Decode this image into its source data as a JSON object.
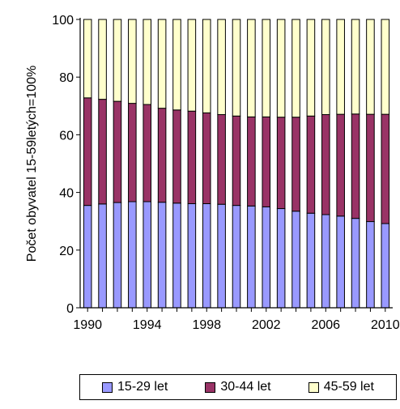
{
  "chart_data": {
    "type": "bar",
    "stacked": true,
    "xlabel": "",
    "ylabel": "Počet obyvatel 15-59letých=100%",
    "ylim": [
      0,
      100
    ],
    "yticks": [
      0,
      20,
      40,
      60,
      80,
      100
    ],
    "xtick_labels": [
      "1990",
      "1994",
      "1998",
      "2002",
      "2006",
      "2010"
    ],
    "grid": false,
    "legend_position": "bottom",
    "categories": [
      "1990",
      "1991",
      "1992",
      "1993",
      "1994",
      "1995",
      "1996",
      "1997",
      "1998",
      "1999",
      "2000",
      "2001",
      "2002",
      "2003",
      "2004",
      "2005",
      "2006",
      "2007",
      "2008",
      "2009",
      "2010"
    ],
    "series": [
      {
        "name": "15-29 let",
        "color": "#9999ff",
        "values": [
          35.5,
          36.0,
          36.5,
          36.8,
          36.8,
          36.6,
          36.3,
          36.1,
          36.1,
          35.9,
          35.5,
          35.3,
          35.0,
          34.4,
          33.5,
          32.8,
          32.3,
          31.8,
          31.0,
          29.9,
          29.2
        ]
      },
      {
        "name": "30-44 let",
        "color": "#993366",
        "values": [
          37.3,
          36.3,
          35.1,
          34.1,
          33.7,
          32.6,
          32.3,
          32.1,
          31.5,
          31.1,
          31.0,
          30.9,
          31.2,
          31.7,
          32.6,
          33.7,
          34.7,
          35.3,
          36.2,
          37.2,
          37.9
        ]
      },
      {
        "name": "45-59 let",
        "color": "#ffffcc",
        "values": [
          27.2,
          27.7,
          28.4,
          29.1,
          29.5,
          30.8,
          31.4,
          31.8,
          32.4,
          33.0,
          33.5,
          33.8,
          33.8,
          33.9,
          33.9,
          33.5,
          33.0,
          32.9,
          32.8,
          32.9,
          32.9
        ]
      }
    ]
  }
}
